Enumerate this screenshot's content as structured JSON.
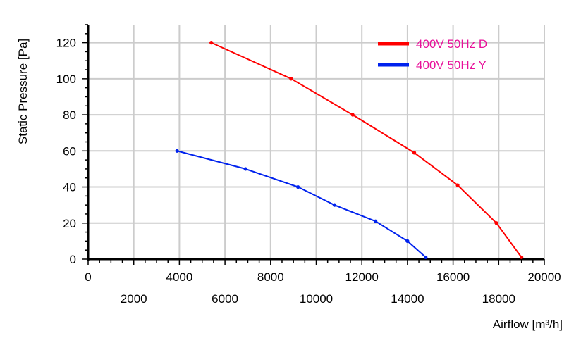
{
  "chart_data": {
    "type": "line",
    "title": "",
    "xlabel": "Airflow [m³/h]",
    "ylabel": "Static Pressure [Pa]",
    "xlim": [
      0,
      20000
    ],
    "ylim": [
      0,
      130
    ],
    "x_ticks": [
      0,
      2000,
      4000,
      6000,
      8000,
      10000,
      12000,
      14000,
      16000,
      18000,
      20000
    ],
    "y_ticks": [
      0,
      20,
      40,
      60,
      80,
      100,
      120
    ],
    "grid": true,
    "legend_position": "top-right",
    "legend_text_color": "#e8119a",
    "series": [
      {
        "name": "400V 50Hz D",
        "color": "#ff0000",
        "x": [
          5400,
          8900,
          11600,
          14300,
          16200,
          17900,
          19000
        ],
        "y": [
          120,
          100,
          80,
          59,
          41,
          20,
          1
        ]
      },
      {
        "name": "400V 50Hz Y",
        "color": "#0022ee",
        "x": [
          3900,
          6900,
          9200,
          10800,
          12600,
          14000,
          14800
        ],
        "y": [
          60,
          50,
          40,
          30,
          21,
          10,
          1
        ]
      }
    ]
  }
}
